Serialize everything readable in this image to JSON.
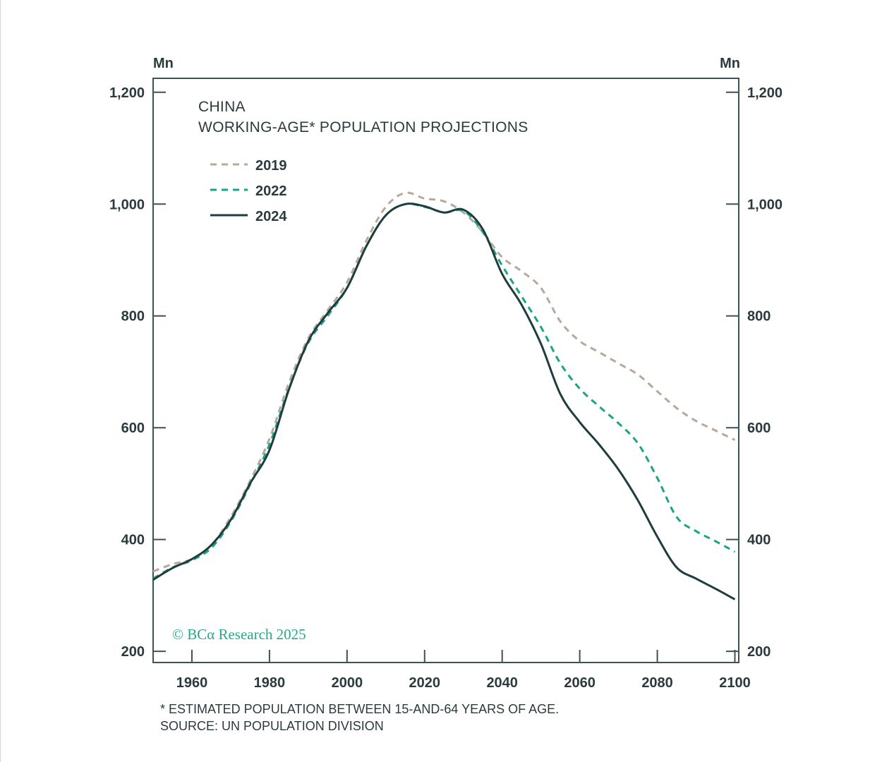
{
  "chart_data": {
    "type": "line",
    "title": "CHINA",
    "subtitle": "WORKING-AGE* POPULATION PROJECTIONS",
    "ylabel_left": "Mn",
    "ylabel_right": "Mn",
    "xlabel": "",
    "xlim": [
      1950,
      2101
    ],
    "ylim": [
      180,
      1225
    ],
    "x_ticks": [
      1960,
      1980,
      2000,
      2020,
      2040,
      2060,
      2080,
      2100
    ],
    "y_ticks": [
      200,
      400,
      600,
      800,
      1000,
      1200
    ],
    "y_tick_labels": [
      "200",
      "400",
      "600",
      "800",
      "1,000",
      "1,200"
    ],
    "x_tick_labels": [
      "1960",
      "1980",
      "2000",
      "2020",
      "2040",
      "2060",
      "2080",
      "2100"
    ],
    "legend_position": "top-left",
    "series": [
      {
        "name": "2019",
        "style": "dashed",
        "color": "#b8a89a",
        "x": [
          1950,
          1955,
          1960,
          1965,
          1970,
          1975,
          1980,
          1985,
          1990,
          1995,
          2000,
          2005,
          2010,
          2015,
          2020,
          2025,
          2030,
          2035,
          2040,
          2045,
          2050,
          2055,
          2060,
          2065,
          2070,
          2075,
          2080,
          2085,
          2090,
          2095,
          2100
        ],
        "values": [
          343,
          356,
          365,
          390,
          440,
          505,
          580,
          680,
          760,
          810,
          860,
          935,
          995,
          1020,
          1010,
          1005,
          985,
          950,
          905,
          880,
          850,
          790,
          755,
          735,
          715,
          695,
          665,
          635,
          612,
          595,
          578
        ]
      },
      {
        "name": "2022",
        "style": "dashed",
        "color": "#1aa582",
        "x": [
          1950,
          1955,
          1960,
          1965,
          1970,
          1975,
          1980,
          1985,
          1990,
          1995,
          2000,
          2005,
          2010,
          2015,
          2020,
          2025,
          2030,
          2035,
          2040,
          2045,
          2050,
          2055,
          2060,
          2065,
          2070,
          2075,
          2080,
          2085,
          2090,
          2095,
          2100
        ],
        "values": [
          330,
          350,
          363,
          385,
          432,
          498,
          570,
          670,
          752,
          800,
          850,
          925,
          980,
          1000,
          995,
          985,
          988,
          950,
          890,
          835,
          780,
          715,
          670,
          638,
          608,
          572,
          510,
          440,
          415,
          397,
          378
        ]
      },
      {
        "name": "2024",
        "style": "solid",
        "color": "#1f3d3f",
        "x": [
          1950,
          1955,
          1960,
          1965,
          1970,
          1975,
          1980,
          1985,
          1990,
          1995,
          2000,
          2005,
          2010,
          2015,
          2020,
          2025,
          2030,
          2035,
          2040,
          2045,
          2050,
          2055,
          2060,
          2065,
          2070,
          2075,
          2080,
          2085,
          2090,
          2095,
          2100
        ],
        "values": [
          328,
          349,
          365,
          390,
          435,
          500,
          560,
          668,
          755,
          805,
          850,
          925,
          980,
          1000,
          996,
          985,
          990,
          955,
          875,
          820,
          750,
          660,
          610,
          570,
          525,
          470,
          405,
          350,
          330,
          312,
          293
        ]
      }
    ],
    "footnote": "* ESTIMATED POPULATION BETWEEN 15-AND-64 YEARS OF AGE.",
    "source": "SOURCE: UN POPULATION DIVISION",
    "credit": "© BCα Research 2025"
  },
  "colors": {
    "axis": "#2b3a3c",
    "frame": "#3d5254"
  }
}
